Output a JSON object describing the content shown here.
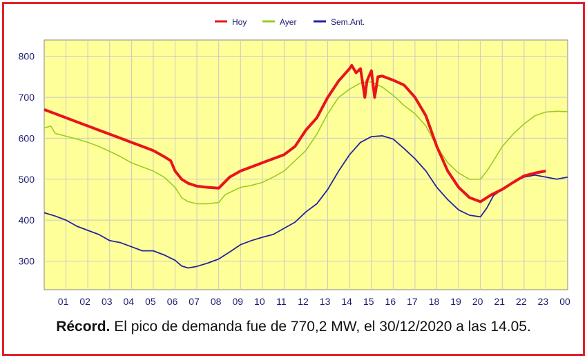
{
  "colors": {
    "frame": "#e0202a",
    "plot_bg": "#ffff99",
    "grid": "#c8c8c8"
  },
  "caption": {
    "bold": "Récord.",
    "text": " El pico de demanda fue de 770,2 MW, el 30/12/2020 a las 14.05."
  },
  "chart_data": {
    "type": "line",
    "title": "",
    "xlabel": "",
    "ylabel": "",
    "ylim": [
      230,
      840
    ],
    "yticks": [
      300,
      400,
      500,
      600,
      700,
      800
    ],
    "xlim": [
      0,
      24
    ],
    "xticks": [
      "01",
      "02",
      "03",
      "04",
      "05",
      "06",
      "07",
      "08",
      "09",
      "10",
      "11",
      "12",
      "13",
      "14",
      "15",
      "16",
      "17",
      "18",
      "19",
      "20",
      "21",
      "22",
      "23",
      "00"
    ],
    "grid": true,
    "legend_position": "top-center",
    "series": [
      {
        "name": "Hoy",
        "color": "#e8141c",
        "x": [
          0,
          0.5,
          1,
          1.5,
          2,
          2.5,
          3,
          3.5,
          4,
          4.5,
          5,
          5.5,
          5.8,
          6,
          6.3,
          6.6,
          7,
          7.5,
          8,
          8.5,
          9,
          9.5,
          10,
          10.5,
          11,
          11.5,
          12,
          12.5,
          13,
          13.5,
          14,
          14.1,
          14.3,
          14.5,
          14.7,
          14.8,
          15,
          15.15,
          15.3,
          15.5,
          16,
          16.5,
          17,
          17.5,
          18,
          18.5,
          19,
          19.5,
          20,
          20.5,
          21,
          21.5,
          22,
          22.5,
          23
        ],
        "y": [
          670,
          660,
          650,
          640,
          630,
          620,
          610,
          600,
          590,
          580,
          570,
          555,
          545,
          520,
          500,
          490,
          483,
          480,
          478,
          505,
          520,
          530,
          540,
          550,
          560,
          580,
          620,
          650,
          700,
          740,
          770,
          778,
          760,
          770,
          700,
          740,
          765,
          700,
          750,
          752,
          742,
          730,
          700,
          655,
          580,
          520,
          480,
          455,
          445,
          462,
          475,
          492,
          508,
          515,
          520
        ]
      },
      {
        "name": "Ayer",
        "color": "#99cc22",
        "x": [
          0,
          0.3,
          0.5,
          1,
          1.5,
          2,
          2.5,
          3,
          3.5,
          4,
          4.5,
          5,
          5.5,
          6,
          6.3,
          6.6,
          7,
          7.5,
          8,
          8.3,
          8.6,
          9,
          9.5,
          10,
          10.5,
          11,
          11.5,
          12,
          12.5,
          13,
          13.5,
          14,
          14.5,
          15,
          15.5,
          16,
          16.5,
          17,
          17.5,
          18,
          18.5,
          19,
          19.5,
          20,
          20.3,
          20.6,
          21,
          21.5,
          22,
          22.5,
          23,
          23.5,
          24
        ],
        "y": [
          625,
          630,
          612,
          605,
          598,
          590,
          580,
          568,
          555,
          540,
          530,
          520,
          505,
          480,
          455,
          445,
          440,
          440,
          443,
          462,
          470,
          480,
          485,
          492,
          505,
          520,
          545,
          570,
          610,
          660,
          700,
          720,
          735,
          738,
          725,
          705,
          680,
          660,
          630,
          580,
          540,
          515,
          500,
          500,
          520,
          545,
          580,
          610,
          635,
          655,
          664,
          666,
          665
        ]
      },
      {
        "name": "Sem.Ant.",
        "color": "#22239e",
        "x": [
          0,
          0.5,
          1,
          1.5,
          2,
          2.5,
          3,
          3.5,
          4,
          4.5,
          5,
          5.5,
          6,
          6.3,
          6.6,
          7,
          7.5,
          8,
          8.5,
          9,
          9.5,
          10,
          10.5,
          11,
          11.5,
          12,
          12.5,
          13,
          13.5,
          14,
          14.5,
          15,
          15.5,
          16,
          16.5,
          17,
          17.5,
          18,
          18.5,
          19,
          19.5,
          20,
          20.3,
          20.6,
          21,
          21.5,
          22,
          22.5,
          23,
          23.5,
          24
        ],
        "y": [
          418,
          410,
          400,
          385,
          375,
          365,
          350,
          345,
          335,
          325,
          325,
          315,
          302,
          288,
          283,
          287,
          295,
          305,
          322,
          340,
          350,
          358,
          365,
          380,
          395,
          420,
          440,
          475,
          520,
          560,
          590,
          604,
          606,
          598,
          575,
          550,
          520,
          480,
          450,
          425,
          412,
          408,
          430,
          460,
          475,
          492,
          505,
          510,
          505,
          500,
          505
        ]
      }
    ]
  }
}
